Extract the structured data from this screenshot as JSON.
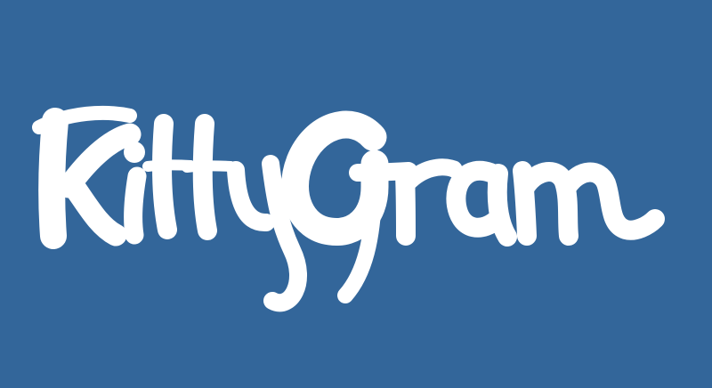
{
  "logo": {
    "text": "KittyGram",
    "color": "#ffffff",
    "background": "#33669a"
  }
}
